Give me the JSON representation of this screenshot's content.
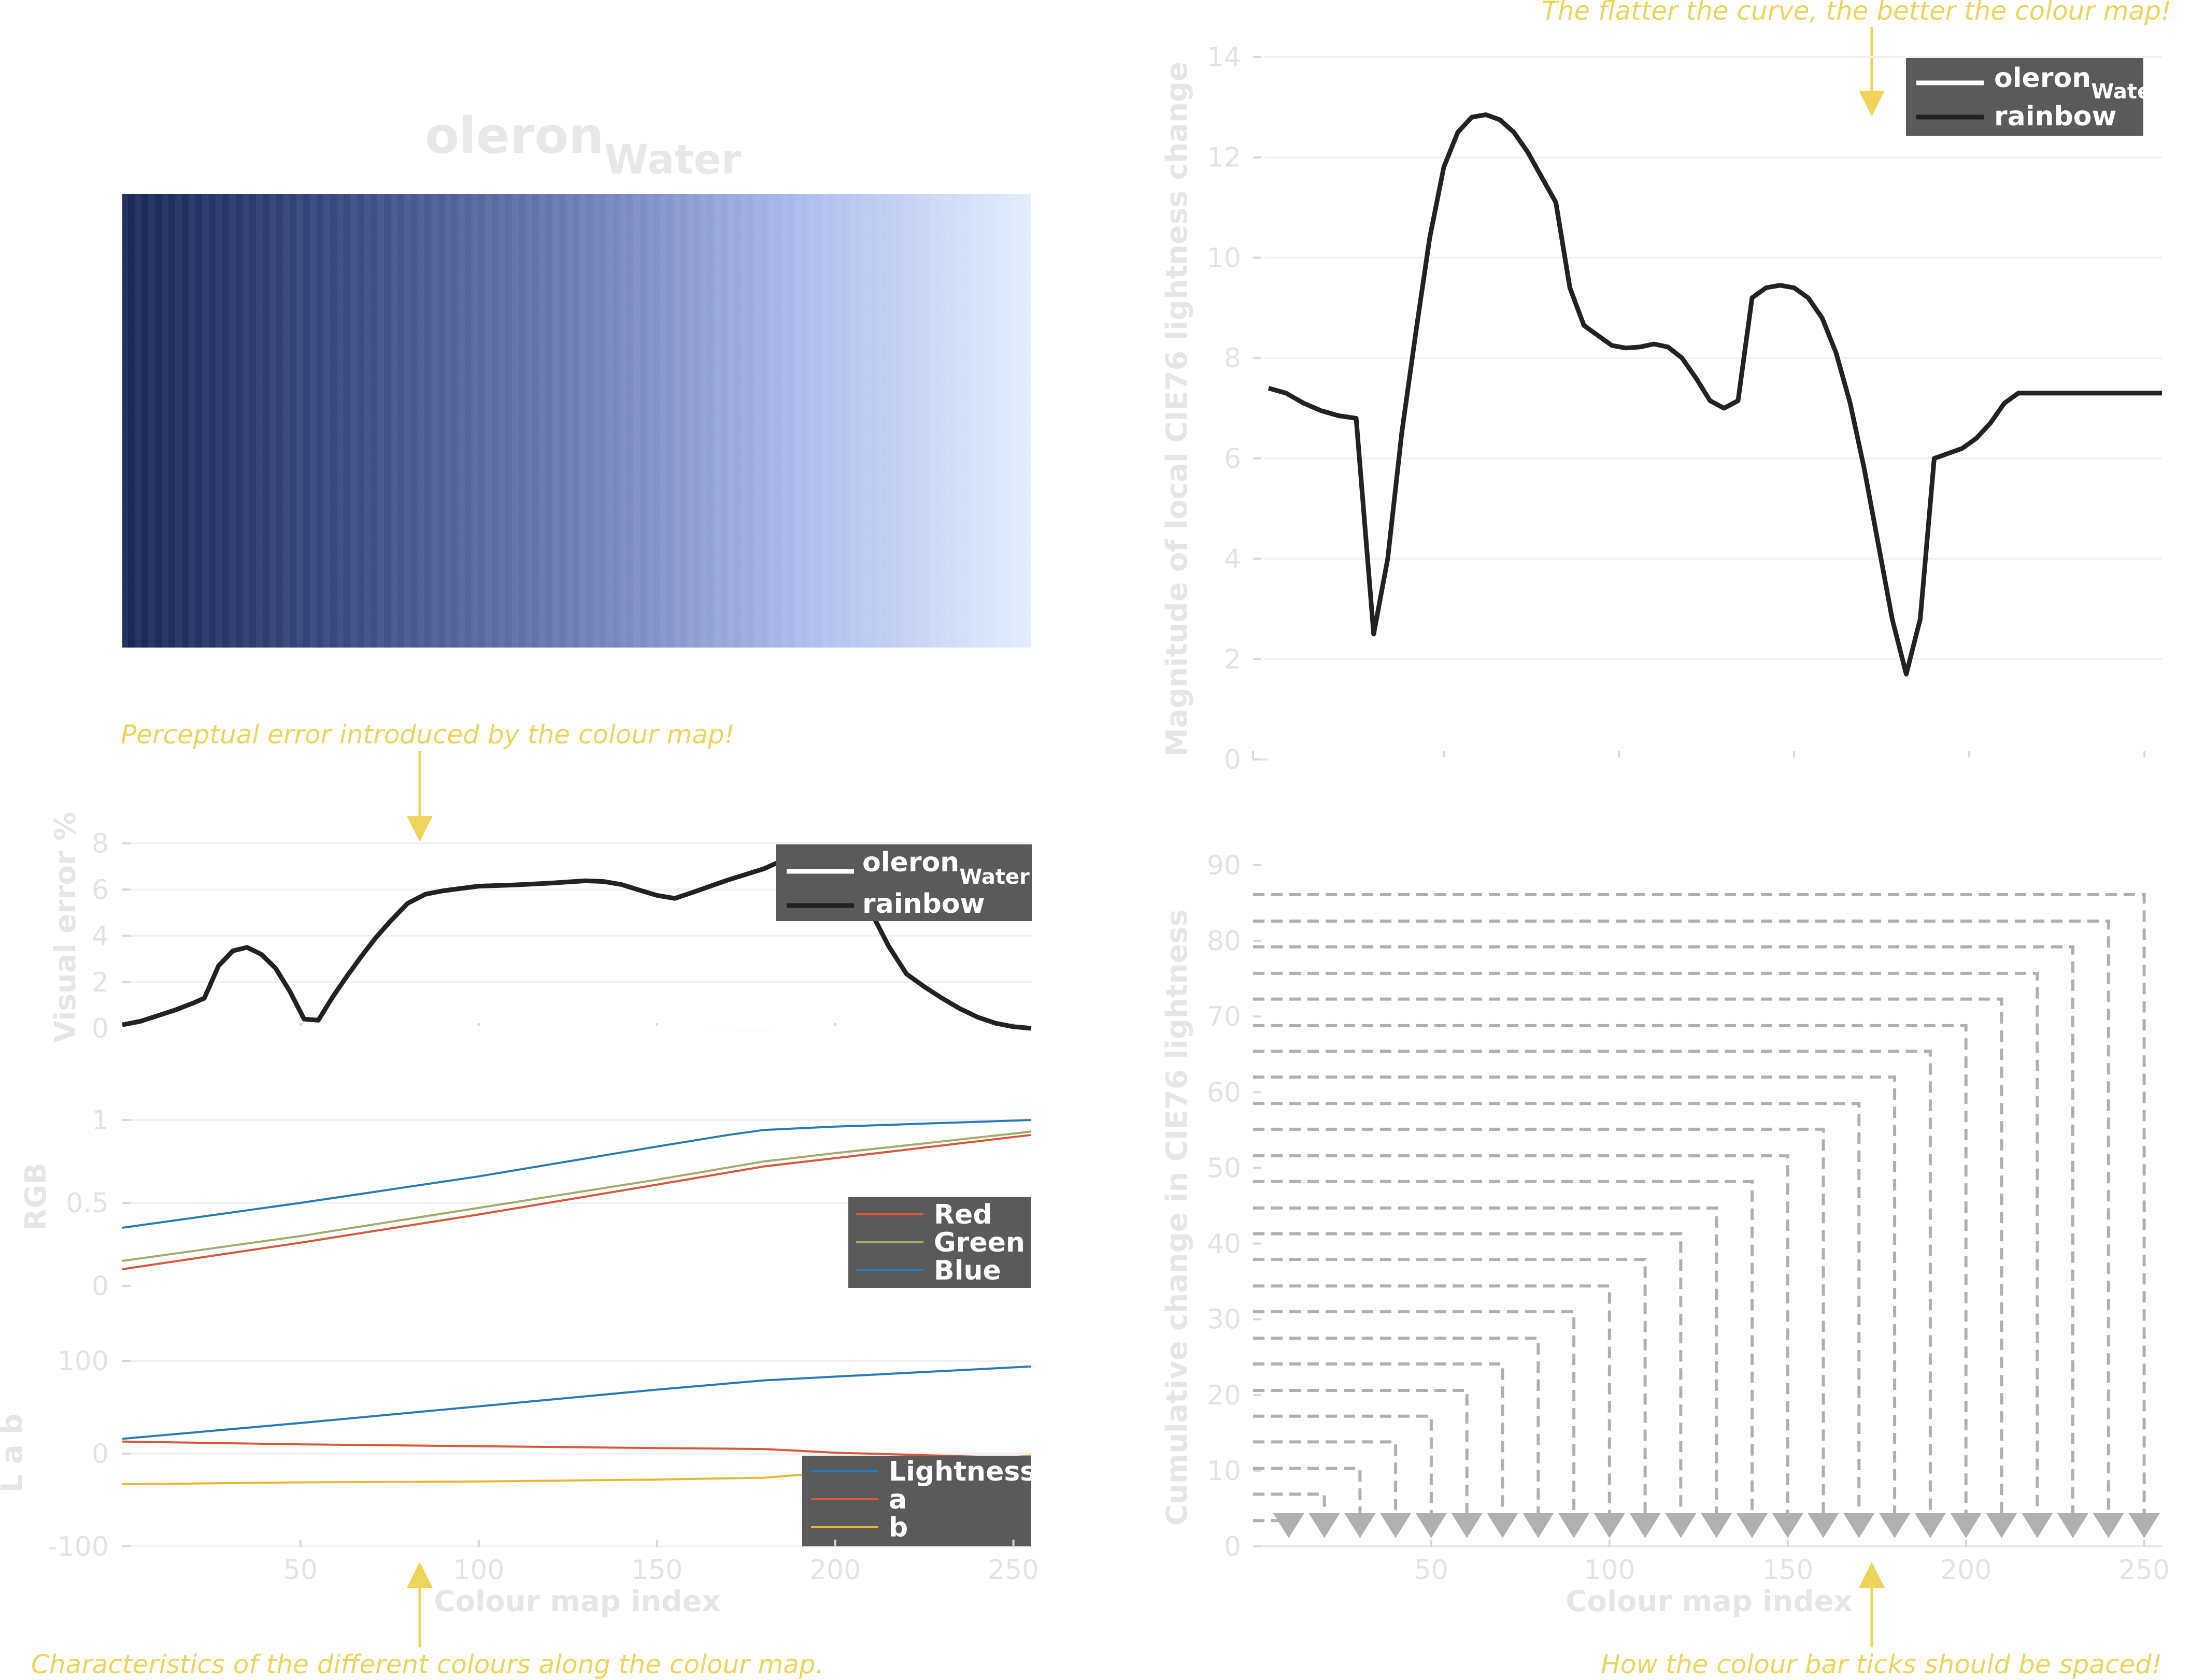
{
  "title": {
    "main": "oleron",
    "sub": "Water"
  },
  "annotations": {
    "top_right": "The flatter the curve, the better the colour map!",
    "mid_left": "Perceptual error introduced by the colour map!",
    "bottom_left": "Characteristics of the different colours along the colour map.",
    "bottom_right": "How the colour bar ticks should be spaced!"
  },
  "colors": {
    "annotation": "#efd45a",
    "curve": "#222222",
    "legend_bg": "#5a5a5a",
    "red": "#d9573a",
    "green": "#a5a96a",
    "blue": "#2a7ab8",
    "lightness": "#2a7ab8",
    "a": "#d9573a",
    "b": "#e6b733",
    "ticks_dashed": "#b0b0b0"
  },
  "colormap": {
    "stops": [
      "#1a2657",
      "#3c4a82",
      "#6e7cb5",
      "#aebbee",
      "#e2eefb"
    ]
  },
  "legend_main": {
    "series": [
      {
        "main": "oleron",
        "sub": "Water"
      },
      {
        "main": "rainbow",
        "sub": ""
      }
    ]
  },
  "chart_data": [
    {
      "type": "line",
      "name": "lightness_change",
      "ylabel": "Magnitude of local CIE76 lightness change",
      "xlim": [
        0,
        255
      ],
      "ylim": [
        0,
        14
      ],
      "yticks": [
        0,
        2,
        4,
        6,
        8,
        10,
        12,
        14
      ],
      "xticks": [
        50,
        100,
        150,
        200,
        250
      ],
      "series": [
        {
          "name": "oleron Water",
          "color": "#ffffff",
          "x": [
            0,
            255
          ],
          "y": [
            0,
            0
          ]
        },
        {
          "name": "rainbow",
          "color": "#222222",
          "x": [
            0,
            5,
            10,
            15,
            20,
            25,
            30,
            34,
            38,
            42,
            46,
            50,
            54,
            58,
            62,
            66,
            70,
            74,
            78,
            82,
            86,
            90,
            94,
            98,
            102,
            106,
            110,
            114,
            118,
            122,
            126,
            130,
            134,
            138,
            142,
            146,
            150,
            154,
            158,
            162,
            166,
            170,
            174,
            178,
            182,
            186,
            190,
            194,
            198,
            202,
            206,
            210,
            214,
            218,
            222,
            226,
            230,
            234,
            238,
            242,
            246,
            250,
            255
          ],
          "y": [
            7.4,
            7.3,
            7.1,
            6.95,
            6.85,
            6.8,
            2.5,
            4.0,
            6.5,
            8.5,
            10.4,
            11.8,
            12.5,
            12.8,
            12.85,
            12.75,
            12.5,
            12.1,
            11.6,
            11.1,
            9.4,
            8.65,
            8.45,
            8.25,
            8.2,
            8.22,
            8.28,
            8.22,
            8.0,
            7.6,
            7.15,
            7.0,
            7.15,
            9.2,
            9.4,
            9.45,
            9.4,
            9.2,
            8.8,
            8.1,
            7.1,
            5.8,
            4.3,
            2.8,
            1.7,
            2.8,
            6.0,
            6.1,
            6.2,
            6.4,
            6.7,
            7.1,
            7.3,
            7.3,
            7.3,
            7.3,
            7.3,
            7.3,
            7.3,
            7.3,
            7.3,
            7.3,
            7.3
          ]
        }
      ]
    },
    {
      "type": "line",
      "name": "visual_error",
      "ylabel": "Visual error %",
      "xlim": [
        0,
        255
      ],
      "ylim": [
        0,
        8
      ],
      "yticks": [
        0,
        2,
        4,
        6,
        8
      ],
      "series": [
        {
          "name": "oleron Water",
          "color": "#ffffff",
          "x": [
            0,
            255
          ],
          "y": [
            0,
            0
          ]
        },
        {
          "name": "rainbow",
          "color": "#222222",
          "x": [
            0,
            5,
            10,
            15,
            20,
            23,
            27,
            31,
            35,
            39,
            43,
            47,
            51,
            55,
            59,
            63,
            67,
            71,
            75,
            80,
            85,
            90,
            95,
            100,
            110,
            120,
            130,
            135,
            140,
            145,
            150,
            155,
            160,
            170,
            180,
            185,
            190,
            195,
            200,
            205,
            210,
            215,
            220,
            225,
            230,
            235,
            240,
            245,
            250,
            255
          ],
          "y": [
            0.15,
            0.3,
            0.55,
            0.8,
            1.1,
            1.3,
            2.7,
            3.35,
            3.5,
            3.2,
            2.6,
            1.6,
            0.4,
            0.35,
            1.35,
            2.25,
            3.1,
            3.9,
            4.6,
            5.4,
            5.8,
            5.95,
            6.05,
            6.15,
            6.2,
            6.28,
            6.38,
            6.35,
            6.22,
            5.98,
            5.75,
            5.62,
            5.88,
            6.42,
            6.9,
            7.25,
            7.45,
            7.42,
            7.1,
            6.35,
            5.05,
            3.55,
            2.35,
            1.8,
            1.3,
            0.85,
            0.48,
            0.22,
            0.07,
            0.0
          ]
        }
      ]
    },
    {
      "type": "line",
      "name": "rgb",
      "ylabel": "RGB",
      "xlim": [
        0,
        255
      ],
      "ylim": [
        0,
        1
      ],
      "yticks": [
        0,
        0.5,
        1
      ],
      "ytick_labels": [
        "0",
        "0.5",
        "1"
      ],
      "series": [
        {
          "name": "Red",
          "color": "#d9573a",
          "x": [
            0,
            50,
            100,
            150,
            180,
            200,
            255
          ],
          "y": [
            0.1,
            0.26,
            0.43,
            0.61,
            0.72,
            0.77,
            0.91
          ]
        },
        {
          "name": "Green",
          "color": "#a5a96a",
          "x": [
            0,
            50,
            100,
            150,
            180,
            200,
            255
          ],
          "y": [
            0.15,
            0.3,
            0.47,
            0.64,
            0.75,
            0.8,
            0.93
          ]
        },
        {
          "name": "Blue",
          "color": "#2a7ab8",
          "x": [
            0,
            50,
            100,
            150,
            170,
            180,
            200,
            255
          ],
          "y": [
            0.35,
            0.5,
            0.66,
            0.84,
            0.91,
            0.94,
            0.96,
            1.0
          ]
        }
      ]
    },
    {
      "type": "line",
      "name": "lab",
      "ylabel": "L a b",
      "xlim": [
        0,
        255
      ],
      "ylim": [
        -100,
        100
      ],
      "yticks": [
        -100,
        0,
        100
      ],
      "ytick_labels": [
        "-100",
        "0",
        "100"
      ],
      "series": [
        {
          "name": "Lightness",
          "color": "#2a7ab8",
          "x": [
            0,
            50,
            100,
            150,
            180,
            200,
            255
          ],
          "y": [
            16,
            33,
            51,
            69,
            79,
            83,
            94
          ]
        },
        {
          "name": "a",
          "color": "#d9573a",
          "x": [
            0,
            50,
            100,
            150,
            180,
            200,
            255
          ],
          "y": [
            13,
            10,
            8,
            6,
            5,
            1,
            -5
          ]
        },
        {
          "name": "b",
          "color": "#e6b733",
          "x": [
            0,
            50,
            100,
            150,
            180,
            200,
            255
          ],
          "y": [
            -33,
            -31,
            -30,
            -28,
            -26,
            -20,
            -2
          ]
        }
      ]
    },
    {
      "type": "line",
      "name": "cumulative_lightness",
      "ylabel": "Cumulative change in CIE76 lightness",
      "xlabel": "Colour map index",
      "xlim": [
        0,
        255
      ],
      "ylim": [
        0,
        90
      ],
      "yticks": [
        0,
        10,
        20,
        30,
        40,
        50,
        60,
        70,
        80,
        90
      ],
      "xticks": [
        50,
        100,
        150,
        200,
        250
      ],
      "tick_positions": [
        10,
        20,
        30,
        40,
        50,
        60,
        70,
        80,
        90,
        100,
        110,
        120,
        130,
        140,
        150,
        160,
        170,
        180,
        190,
        200,
        210,
        220,
        230,
        240,
        250
      ],
      "tick_values": [
        3.4,
        6.9,
        10.3,
        13.8,
        17.2,
        20.6,
        24.1,
        27.5,
        31.0,
        34.4,
        37.9,
        41.3,
        44.7,
        48.2,
        51.6,
        55.1,
        58.5,
        62.0,
        65.4,
        68.8,
        72.3,
        75.7,
        79.2,
        82.6,
        86.1
      ]
    }
  ],
  "rgb_legend": [
    "Red",
    "Green",
    "Blue"
  ],
  "lab_legend": [
    "Lightness",
    "a",
    "b"
  ],
  "bottom_xticks": [
    "50",
    "100",
    "150",
    "200",
    "250"
  ],
  "xlabel": "Colour map index"
}
